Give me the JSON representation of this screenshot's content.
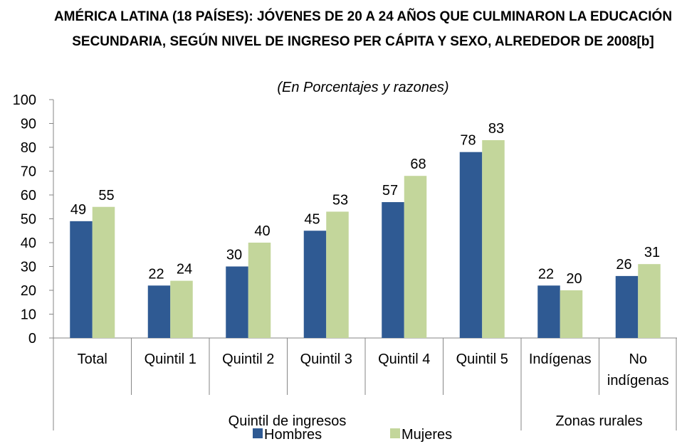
{
  "chart_data": {
    "type": "bar",
    "title": "AMÉRICA LATINA (18 PAÍSES): JÓVENES DE 20 A 24 AÑOS QUE CULMINARON LA EDUCACIÓN SECUNDARIA, SEGÚN NIVEL DE INGRESO PER CÁPITA Y SEXO, ALREDEDOR DE 2008[b]",
    "subtitle": "(En Porcentajes y razones)",
    "categories": [
      "Total",
      "Quintil 1",
      "Quintil 2",
      "Quintil 3",
      "Quintil 4",
      "Quintil 5",
      "Indígenas",
      "No indígenas"
    ],
    "category_groups": [
      "Quintil de ingresos",
      "Quintil de ingresos",
      "Quintil de ingresos",
      "Quintil de ingresos",
      "Quintil de ingresos",
      "Quintil de ingresos",
      "Zonas rurales",
      "Zonas rurales"
    ],
    "series": [
      {
        "name": "Hombres",
        "color": "#2f5a93",
        "values": [
          49,
          22,
          30,
          45,
          57,
          78,
          22,
          26
        ]
      },
      {
        "name": "Mujeres",
        "color": "#c3d69b",
        "values": [
          55,
          24,
          40,
          53,
          68,
          83,
          20,
          31
        ]
      }
    ],
    "ylim": [
      0,
      100
    ],
    "yticks": [
      0,
      10,
      20,
      30,
      40,
      50,
      60,
      70,
      80,
      90,
      100
    ],
    "legend": "bottom"
  }
}
